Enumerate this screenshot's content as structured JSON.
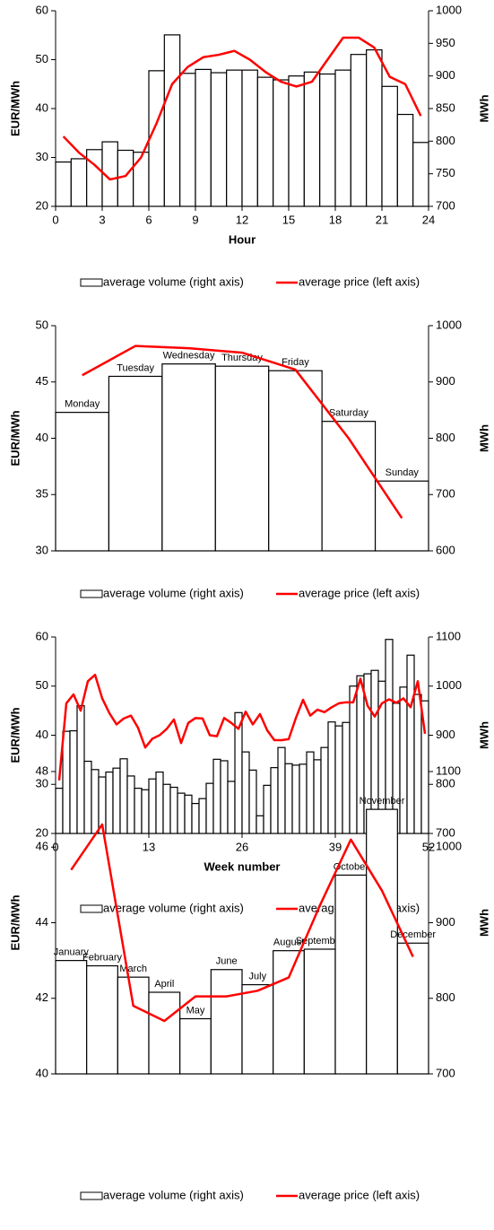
{
  "chart_data": [
    {
      "type": "combo",
      "xlabel": "Hour",
      "ylabel": "EUR/MWh",
      "y2label": "MWh",
      "x": [
        0.5,
        1.5,
        2.5,
        3.5,
        4.5,
        5.5,
        6.5,
        7.5,
        8.5,
        9.5,
        10.5,
        11.5,
        12.5,
        13.5,
        14.5,
        15.5,
        16.5,
        17.5,
        18.5,
        19.5,
        20.5,
        21.5,
        22.5,
        23.5
      ],
      "xlim": [
        0,
        24
      ],
      "xticks": [
        0,
        3,
        6,
        9,
        12,
        15,
        18,
        21,
        24
      ],
      "ylim": [
        20,
        60
      ],
      "yticks": [
        20,
        30,
        40,
        50,
        60
      ],
      "y2lim": [
        700,
        1000
      ],
      "y2ticks": [
        700,
        750,
        800,
        850,
        900,
        950,
        1000
      ],
      "series": [
        {
          "name": "average volume (right axis)",
          "type": "bar",
          "axis": "y2",
          "color": "#000000",
          "values": [
            768,
            773,
            787,
            799,
            786,
            783,
            908,
            963,
            904,
            910,
            905,
            909,
            909,
            898,
            894,
            900,
            906,
            903,
            909,
            933,
            940,
            884,
            841,
            798
          ]
        },
        {
          "name": "average price (left axis)",
          "type": "line",
          "color": "#ff0000",
          "values": [
            34.3,
            31,
            28.5,
            25.5,
            26.2,
            30,
            37,
            45,
            48.5,
            50.5,
            51,
            51.8,
            50,
            47.5,
            45.5,
            44.5,
            45.5,
            50,
            54.5,
            54.5,
            52.5,
            46.5,
            45,
            38.5
          ]
        }
      ]
    },
    {
      "type": "combo",
      "ylabel": "EUR/MWh",
      "y2label": "MWh",
      "categories": [
        "Monday",
        "Tuesday",
        "Wednesday",
        "Thursday",
        "Friday",
        "Saturday",
        "Sunday"
      ],
      "ylim": [
        30,
        50
      ],
      "yticks": [
        30,
        35,
        40,
        45,
        50
      ],
      "y2lim": [
        600,
        1000
      ],
      "y2ticks": [
        600,
        700,
        800,
        900,
        1000
      ],
      "series": [
        {
          "name": "average volume (right axis)",
          "type": "bar",
          "axis": "y2",
          "color": "#000000",
          "values": [
            846,
            910,
            932,
            928,
            920,
            830,
            724
          ]
        },
        {
          "name": "average price (left axis)",
          "type": "line",
          "color": "#ff0000",
          "values": [
            45.6,
            48.2,
            48,
            47.6,
            46.1,
            40,
            32.9
          ]
        }
      ]
    },
    {
      "type": "combo",
      "xlabel": "Week number",
      "ylabel": "EUR/MWh",
      "y2label": "MWh",
      "x": [
        0.5,
        1.5,
        2.5,
        3.5,
        4.5,
        5.5,
        6.5,
        7.5,
        8.5,
        9.5,
        10.5,
        11.5,
        12.5,
        13.5,
        14.5,
        15.5,
        16.5,
        17.5,
        18.5,
        19.5,
        20.5,
        21.5,
        22.5,
        23.5,
        24.5,
        25.5,
        26.5,
        27.5,
        28.5,
        29.5,
        30.5,
        31.5,
        32.5,
        33.5,
        34.5,
        35.5,
        36.5,
        37.5,
        38.5,
        39.5,
        40.5,
        41.5,
        42.5,
        43.5,
        44.5,
        45.5,
        46.5,
        47.5,
        48.5,
        49.5,
        50.5,
        51.5
      ],
      "xlim": [
        0,
        52
      ],
      "xticks": [
        0,
        13,
        26,
        39,
        52
      ],
      "ylim": [
        20,
        60
      ],
      "yticks": [
        20,
        30,
        40,
        50,
        60
      ],
      "y2lim": [
        700,
        1100
      ],
      "y2ticks": [
        700,
        800,
        900,
        1000,
        1100
      ],
      "series": [
        {
          "name": "average volume (right axis)",
          "type": "bar",
          "axis": "y2",
          "color": "#000000",
          "values": [
            792,
            908,
            909,
            960,
            847,
            830,
            815,
            825,
            833,
            852,
            817,
            792,
            789,
            811,
            825,
            800,
            794,
            782,
            778,
            761,
            771,
            802,
            851,
            848,
            806,
            946,
            866,
            829,
            736,
            798,
            834,
            875,
            842,
            839,
            841,
            866,
            850,
            875,
            927,
            919,
            926,
            1000,
            1021,
            1025,
            1032,
            1010,
            1095,
            965,
            998,
            1063,
            983,
            970
          ]
        },
        {
          "name": "average price (left axis)",
          "type": "line",
          "color": "#ff0000",
          "values": [
            30.8,
            46.5,
            48.3,
            45,
            51,
            52.3,
            47.5,
            44.5,
            42.2,
            43.4,
            44,
            41.5,
            37.5,
            39.3,
            40,
            41.3,
            43.2,
            38.4,
            42.5,
            43.5,
            43.4,
            40,
            39.8,
            43.5,
            42.5,
            41.3,
            44.8,
            42.2,
            44.3,
            41,
            39,
            39,
            39.2,
            43.5,
            47.2,
            44,
            45.2,
            44.7,
            45.7,
            46.5,
            46.7,
            46.7,
            51.5,
            46,
            43.8,
            46.5,
            47.3,
            46.6,
            47.5,
            45.7,
            51,
            40.3
          ]
        }
      ]
    },
    {
      "type": "combo",
      "ylabel": "EUR/MWh",
      "y2label": "MWh",
      "categories": [
        "January",
        "February",
        "March",
        "April",
        "May",
        "June",
        "July",
        "August",
        "September",
        "October",
        "November",
        "December"
      ],
      "ylim": [
        40,
        48
      ],
      "yticks": [
        40,
        42,
        44,
        46,
        48
      ],
      "y2lim": [
        700,
        1100
      ],
      "y2ticks": [
        700,
        800,
        900,
        1000,
        1100
      ],
      "series": [
        {
          "name": "average volume (right axis)",
          "type": "bar",
          "axis": "y2",
          "color": "#000000",
          "values": [
            850,
            843,
            828,
            808,
            773,
            838,
            818,
            863,
            865,
            963,
            1050,
            873
          ]
        },
        {
          "name": "average price (left axis)",
          "type": "line",
          "color": "#ff0000",
          "values": [
            45.4,
            46.6,
            41.8,
            41.4,
            42.05,
            42.05,
            42.2,
            42.55,
            44.45,
            46.2,
            44.85,
            43.1
          ]
        }
      ]
    }
  ]
}
